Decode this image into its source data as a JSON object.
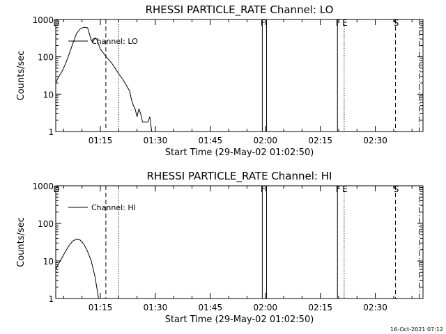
{
  "stamp": "16-Oct-2021 07:12",
  "chart_data": [
    {
      "type": "line",
      "title": "RHESSI PARTICLE_RATE Channel: LO",
      "xlabel": "Start Time (29-May-02 01:02:50)",
      "ylabel": "Counts/sec",
      "yscale": "log",
      "ylim": [
        1,
        1000
      ],
      "xlim": [
        "01:02:50",
        "02:43:00"
      ],
      "x_ticks": [
        "01:15",
        "01:30",
        "01:45",
        "02:00",
        "02:15",
        "02:30"
      ],
      "y_ticks": [
        "1",
        "10",
        "100",
        "1000"
      ],
      "legend": "top-left",
      "series": [
        {
          "name": "Channel: LO",
          "points": [
            [
              "01:02:50",
              20
            ],
            [
              "01:03:30",
              28
            ],
            [
              "01:04:30",
              40
            ],
            [
              "01:05:30",
              65
            ],
            [
              "01:06:30",
              120
            ],
            [
              "01:07:30",
              230
            ],
            [
              "01:08:30",
              420
            ],
            [
              "01:09:30",
              560
            ],
            [
              "01:10:30",
              620
            ],
            [
              "01:11:30",
              600
            ],
            [
              "01:12:00",
              420
            ],
            [
              "01:12:30",
              280
            ],
            [
              "01:13:00",
              250
            ],
            [
              "01:13:30",
              320
            ],
            [
              "01:14:00",
              300
            ],
            [
              "01:14:30",
              220
            ],
            [
              "01:15:00",
              160
            ],
            [
              "01:16:00",
              120
            ],
            [
              "01:17:00",
              90
            ],
            [
              "01:18:00",
              70
            ],
            [
              "01:19:00",
              50
            ],
            [
              "01:20:00",
              35
            ],
            [
              "01:21:00",
              26
            ],
            [
              "01:22:00",
              18
            ],
            [
              "01:23:00",
              12
            ],
            [
              "01:23:30",
              7
            ],
            [
              "01:24:00",
              5
            ],
            [
              "01:24:30",
              4
            ],
            [
              "01:25:00",
              2.5
            ],
            [
              "01:25:30",
              4
            ],
            [
              "01:26:00",
              3
            ],
            [
              "01:26:30",
              1.8
            ],
            [
              "01:28:00",
              1.8
            ],
            [
              "01:28:30",
              2.5
            ],
            [
              "01:29:00",
              1
            ]
          ]
        }
      ],
      "markers": [
        {
          "label": "D",
          "time": "01:02:50",
          "style": "solid"
        },
        {
          "label": "",
          "time": "01:16:30",
          "style": "dashed"
        },
        {
          "label": "",
          "time": "01:20:00",
          "style": "dotted"
        },
        {
          "label": "F",
          "time": "01:59:10",
          "style": "solid"
        },
        {
          "label": "",
          "time": "02:00:20",
          "style": "solid"
        },
        {
          "label": "F",
          "time": "02:19:40",
          "style": "solid"
        },
        {
          "label": "E",
          "time": "02:21:30",
          "style": "dotted"
        },
        {
          "label": "S",
          "time": "02:35:30",
          "style": "dashed"
        },
        {
          "label": "",
          "time": "02:42:00",
          "style": "dashdot"
        }
      ]
    },
    {
      "type": "line",
      "title": "RHESSI PARTICLE_RATE Channel: HI",
      "xlabel": "Start Time (29-May-02 01:02:50)",
      "ylabel": "Counts/sec",
      "yscale": "log",
      "ylim": [
        1,
        1000
      ],
      "xlim": [
        "01:02:50",
        "02:43:00"
      ],
      "x_ticks": [
        "01:15",
        "01:30",
        "01:45",
        "02:00",
        "02:15",
        "02:30"
      ],
      "y_ticks": [
        "1",
        "10",
        "100",
        "1000"
      ],
      "legend": "top-left",
      "series": [
        {
          "name": "Channel: HI",
          "points": [
            [
              "01:02:50",
              6
            ],
            [
              "01:03:30",
              8
            ],
            [
              "01:04:30",
              12
            ],
            [
              "01:05:30",
              18
            ],
            [
              "01:06:30",
              26
            ],
            [
              "01:07:30",
              34
            ],
            [
              "01:08:30",
              38
            ],
            [
              "01:09:30",
              36
            ],
            [
              "01:10:30",
              28
            ],
            [
              "01:11:30",
              18
            ],
            [
              "01:12:30",
              10
            ],
            [
              "01:13:30",
              4
            ],
            [
              "01:14:00",
              2
            ],
            [
              "01:14:30",
              1
            ]
          ]
        }
      ],
      "markers": [
        {
          "label": "D",
          "time": "01:02:50",
          "style": "solid"
        },
        {
          "label": "",
          "time": "01:16:30",
          "style": "dashed"
        },
        {
          "label": "",
          "time": "01:20:00",
          "style": "dotted"
        },
        {
          "label": "F",
          "time": "01:59:10",
          "style": "solid"
        },
        {
          "label": "",
          "time": "02:00:20",
          "style": "solid"
        },
        {
          "label": "F",
          "time": "02:19:40",
          "style": "solid"
        },
        {
          "label": "E",
          "time": "02:21:30",
          "style": "dotted"
        },
        {
          "label": "S",
          "time": "02:35:30",
          "style": "dashed"
        },
        {
          "label": "",
          "time": "02:42:00",
          "style": "dashdot"
        }
      ]
    }
  ]
}
